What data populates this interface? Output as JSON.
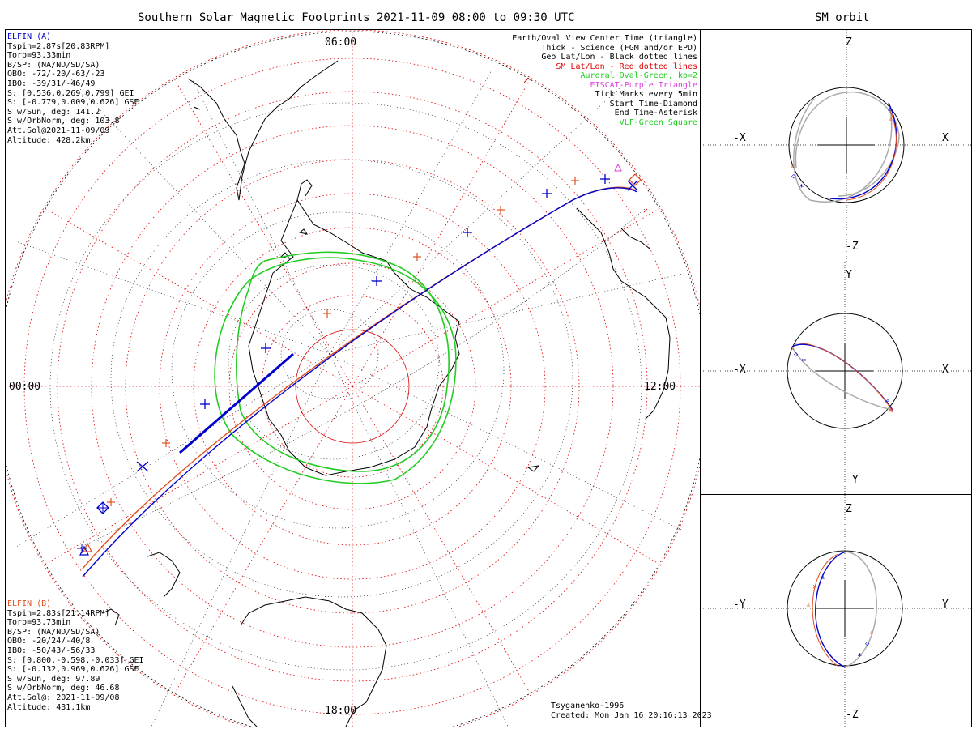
{
  "header": {
    "title": "Southern Solar Magnetic Footprints 2021-11-09 08:00 to 09:30 UTC",
    "orbit_title": "SM orbit"
  },
  "map": {
    "hour_labels": {
      "top": "06:00",
      "left": "00:00",
      "right": "12:00",
      "bottom": "18:00"
    }
  },
  "probe_a": {
    "color": "#0000cc",
    "lines": [
      "ELFIN (A)",
      "Tspin=2.87s[20.83RPM]",
      "Torb=93.33min",
      "B/SP: (NA/ND/SD/SA)",
      "OBO: -72/-20/-63/-23",
      "IBO: -39/31/-46/49",
      "S: [0.536,0.269,0.799] GEI",
      "S: [-0.779,0.009,0.626] GSE",
      "S w/Sun, deg: 141.2",
      "S w/OrbNorm, deg: 103.8",
      "Att.Sol@2021-11-09/09",
      "Altitude: 428.2km"
    ]
  },
  "probe_b": {
    "color": "#e05020",
    "lines": [
      "ELFIN (B)",
      "Tspin=2.83s[21.14RPM]",
      "Torb=93.73min",
      "B/SP: (NA/ND/SD/SA)",
      "OBO: -20/24/-40/8",
      "IBO: -50/43/-56/33",
      "S: [0.800,-0.598,-0.033] GEI",
      "S: [-0.132,0.969,0.626] GSE",
      "S w/Sun, deg: 97.89",
      "S w/OrbNorm, deg: 46.68",
      "Att.Sol@: 2021-11-09/08",
      "Altitude: 431.1km"
    ]
  },
  "legend": [
    {
      "text": "Earth/Oval View Center Time (triangle)",
      "color": "#000000"
    },
    {
      "text": "Thick - Science (FGM and/or EPD)",
      "color": "#000000"
    },
    {
      "text": "Geo Lat/Lon - Black dotted lines",
      "color": "#000000"
    },
    {
      "text": "SM Lat/Lon - Red dotted lines",
      "color": "#dd0000"
    },
    {
      "text": "Auroral Oval-Green, kp=2",
      "color": "#22cc22"
    },
    {
      "text": "EISCAT-Purple Triangle",
      "color": "#dd44dd"
    },
    {
      "text": "Tick Marks every 5min",
      "color": "#000000"
    },
    {
      "text": "Start Time-Diamond",
      "color": "#000000"
    },
    {
      "text": "End Time-Asterisk",
      "color": "#000000"
    },
    {
      "text": "VLF-Green Square",
      "color": "#22cc22"
    }
  ],
  "footer": {
    "model": "Tsyganenko-1996",
    "created": "Created: Mon Jan 16 20:16:13 2023"
  },
  "orbit_panels": [
    {
      "left": "-X",
      "right": "X",
      "top": "Z",
      "bottom": "-Z"
    },
    {
      "left": "-X",
      "right": "X",
      "top": "Y",
      "bottom": "-Y"
    },
    {
      "left": "-Y",
      "right": "Y",
      "top": "Z",
      "bottom": "-Z"
    }
  ]
}
